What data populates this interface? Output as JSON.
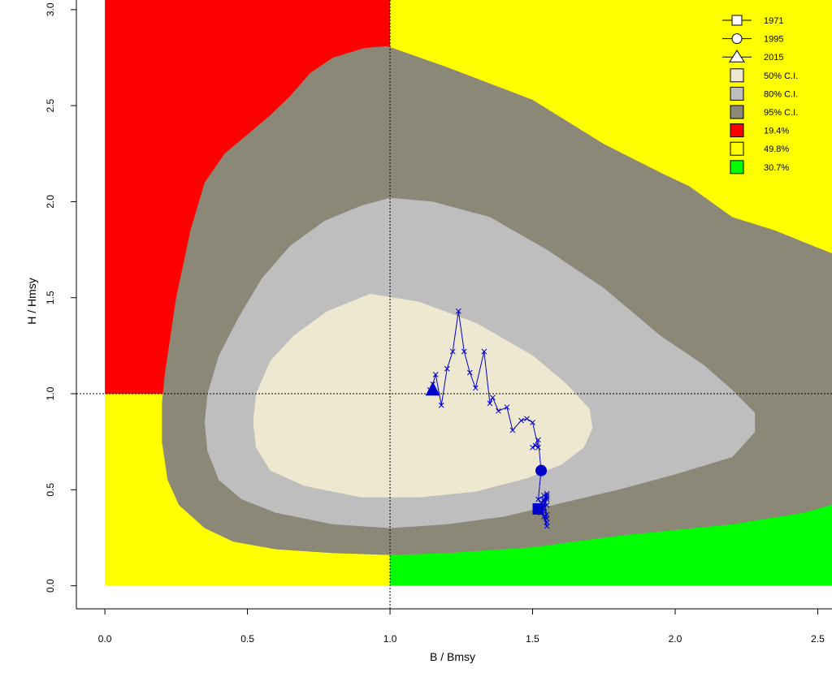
{
  "chart_data": {
    "type": "scatter",
    "title": "",
    "xlabel": "B / Bmsy",
    "ylabel": "H / Hmsy",
    "xlim": [
      -0.1,
      2.55
    ],
    "ylim": [
      -0.12,
      3.05
    ],
    "x_ticks": [
      0.0,
      0.5,
      1.0,
      1.5,
      2.0,
      2.5
    ],
    "x_tick_labels": [
      "0.0",
      "0.5",
      "1.0",
      "1.5",
      "2.0",
      "2.5"
    ],
    "y_ticks": [
      0.0,
      0.5,
      1.0,
      1.5,
      2.0,
      2.5,
      3.0
    ],
    "y_tick_labels": [
      "0.0",
      "0.5",
      "1.0",
      "1.5",
      "2.0",
      "2.5",
      "3.0"
    ],
    "reference_lines": {
      "x": 1.0,
      "y": 1.0
    },
    "quadrants": [
      {
        "label": "19.4%",
        "color": "#FF0000",
        "x": [
          0.0,
          1.0
        ],
        "y": [
          1.0,
          3.05
        ]
      },
      {
        "label": "49.8%",
        "color": "#FFFF00",
        "x": [
          1.0,
          2.55
        ],
        "y": [
          1.0,
          3.05
        ]
      },
      {
        "label": "49.8%",
        "color": "#FFFF00",
        "x": [
          0.0,
          1.0
        ],
        "y": [
          0.0,
          1.0
        ]
      },
      {
        "label": "30.7%",
        "color": "#00FF00",
        "x": [
          1.0,
          2.55
        ],
        "y": [
          0.0,
          1.0
        ]
      }
    ],
    "confidence_regions": [
      {
        "name": "95% C.I.",
        "color": "#8B8878",
        "points": [
          [
            0.91,
            2.8
          ],
          [
            0.99,
            2.81
          ],
          [
            1.2,
            2.7
          ],
          [
            1.5,
            2.53
          ],
          [
            1.75,
            2.3
          ],
          [
            1.95,
            2.15
          ],
          [
            2.05,
            2.08
          ],
          [
            2.2,
            1.92
          ],
          [
            2.35,
            1.85
          ],
          [
            2.5,
            1.76
          ],
          [
            2.57,
            1.72
          ],
          [
            2.57,
            0.43
          ],
          [
            2.45,
            0.38
          ],
          [
            2.2,
            0.32
          ],
          [
            2.0,
            0.29
          ],
          [
            1.8,
            0.26
          ],
          [
            1.5,
            0.2
          ],
          [
            1.2,
            0.17
          ],
          [
            1.0,
            0.16
          ],
          [
            0.8,
            0.17
          ],
          [
            0.6,
            0.19
          ],
          [
            0.45,
            0.23
          ],
          [
            0.35,
            0.3
          ],
          [
            0.26,
            0.42
          ],
          [
            0.22,
            0.55
          ],
          [
            0.2,
            0.75
          ],
          [
            0.2,
            0.95
          ],
          [
            0.21,
            1.1
          ],
          [
            0.25,
            1.5
          ],
          [
            0.3,
            1.85
          ],
          [
            0.35,
            2.1
          ],
          [
            0.42,
            2.25
          ],
          [
            0.5,
            2.35
          ],
          [
            0.58,
            2.45
          ],
          [
            0.65,
            2.55
          ],
          [
            0.72,
            2.67
          ],
          [
            0.8,
            2.75
          ],
          [
            0.91,
            2.8
          ]
        ]
      },
      {
        "name": "80% C.I.",
        "color": "#BEBEBE",
        "points": [
          [
            1.0,
            2.02
          ],
          [
            1.15,
            2.0
          ],
          [
            1.35,
            1.92
          ],
          [
            1.55,
            1.75
          ],
          [
            1.75,
            1.55
          ],
          [
            1.95,
            1.3
          ],
          [
            2.1,
            1.15
          ],
          [
            2.2,
            1.02
          ],
          [
            2.28,
            0.9
          ],
          [
            2.28,
            0.8
          ],
          [
            2.2,
            0.67
          ],
          [
            2.0,
            0.58
          ],
          [
            1.8,
            0.5
          ],
          [
            1.6,
            0.43
          ],
          [
            1.4,
            0.36
          ],
          [
            1.2,
            0.32
          ],
          [
            1.0,
            0.3
          ],
          [
            0.8,
            0.32
          ],
          [
            0.6,
            0.38
          ],
          [
            0.48,
            0.45
          ],
          [
            0.4,
            0.55
          ],
          [
            0.36,
            0.7
          ],
          [
            0.35,
            0.85
          ],
          [
            0.36,
            1.0
          ],
          [
            0.4,
            1.2
          ],
          [
            0.47,
            1.4
          ],
          [
            0.55,
            1.6
          ],
          [
            0.65,
            1.77
          ],
          [
            0.77,
            1.9
          ],
          [
            0.9,
            1.98
          ],
          [
            1.0,
            2.02
          ]
        ]
      },
      {
        "name": "50% C.I.",
        "color": "#EEE8D0",
        "points": [
          [
            0.93,
            1.52
          ],
          [
            1.1,
            1.48
          ],
          [
            1.3,
            1.37
          ],
          [
            1.5,
            1.2
          ],
          [
            1.62,
            1.05
          ],
          [
            1.7,
            0.92
          ],
          [
            1.71,
            0.82
          ],
          [
            1.68,
            0.72
          ],
          [
            1.6,
            0.63
          ],
          [
            1.48,
            0.56
          ],
          [
            1.3,
            0.49
          ],
          [
            1.1,
            0.46
          ],
          [
            0.9,
            0.46
          ],
          [
            0.7,
            0.52
          ],
          [
            0.58,
            0.6
          ],
          [
            0.53,
            0.72
          ],
          [
            0.52,
            0.85
          ],
          [
            0.53,
            1.0
          ],
          [
            0.58,
            1.17
          ],
          [
            0.66,
            1.3
          ],
          [
            0.78,
            1.43
          ],
          [
            0.93,
            1.52
          ]
        ]
      }
    ],
    "trajectory": {
      "color": "#0000CD",
      "x": [
        1.55,
        1.54,
        1.55,
        1.53,
        1.55,
        1.54,
        1.55,
        1.53,
        1.55,
        1.54,
        1.55,
        1.53,
        1.55,
        1.54,
        1.55,
        1.53,
        1.55,
        1.54,
        1.52,
        1.53,
        1.52,
        1.5,
        1.51,
        1.52,
        1.5,
        1.48,
        1.46,
        1.43,
        1.41,
        1.38,
        1.36,
        1.35,
        1.33,
        1.3,
        1.28,
        1.26,
        1.24,
        1.22,
        1.2,
        1.18,
        1.16,
        1.15,
        1.14
      ],
      "y": [
        0.33,
        0.36,
        0.31,
        0.39,
        0.35,
        0.44,
        0.37,
        0.43,
        0.47,
        0.41,
        0.45,
        0.38,
        0.48,
        0.45,
        0.42,
        0.4,
        0.46,
        0.47,
        0.45,
        0.6,
        0.76,
        0.72,
        0.73,
        0.72,
        0.85,
        0.87,
        0.86,
        0.81,
        0.93,
        0.91,
        0.98,
        0.95,
        1.22,
        1.03,
        1.11,
        1.22,
        1.43,
        1.22,
        1.13,
        0.94,
        1.1,
        1.05,
        1.02
      ]
    },
    "markers": [
      {
        "label": "1971",
        "shape": "square",
        "x": 1.52,
        "y": 0.4
      },
      {
        "label": "1995",
        "shape": "circle",
        "x": 1.53,
        "y": 0.6
      },
      {
        "label": "2015",
        "shape": "triangle",
        "x": 1.15,
        "y": 1.02
      }
    ],
    "legend": {
      "position": "top-right",
      "entries": [
        {
          "label": "1971",
          "kind": "line-square"
        },
        {
          "label": "1995",
          "kind": "line-circle"
        },
        {
          "label": "2015",
          "kind": "line-triangle"
        },
        {
          "label": "50% C.I.",
          "kind": "box",
          "color": "#EEE8D0"
        },
        {
          "label": "80% C.I.",
          "kind": "box",
          "color": "#BEBEBE"
        },
        {
          "label": "95% C.I.",
          "kind": "box",
          "color": "#8B8878"
        },
        {
          "label": "19.4%",
          "kind": "box",
          "color": "#FF0000"
        },
        {
          "label": "49.8%",
          "kind": "box",
          "color": "#FFFF00"
        },
        {
          "label": "30.7%",
          "kind": "box",
          "color": "#00FF00"
        }
      ]
    }
  }
}
